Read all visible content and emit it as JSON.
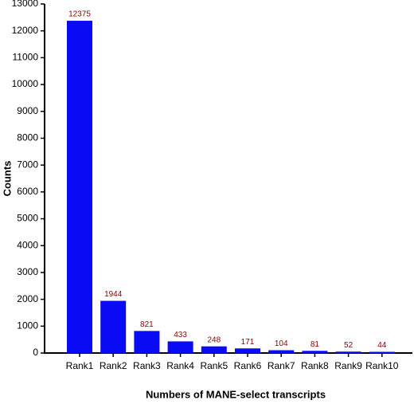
{
  "chart_data": {
    "type": "bar",
    "x_label": "Numbers of MANE-select transcripts",
    "y_label": "Counts",
    "categories": [
      "Rank1",
      "Rank2",
      "Rank3",
      "Rank4",
      "Rank5",
      "Rank6",
      "Rank7",
      "Rank8",
      "Rank9",
      "Rank10"
    ],
    "values": [
      12375,
      1944,
      821,
      433,
      248,
      171,
      104,
      81,
      52,
      44
    ],
    "color": "#0a0af5",
    "label_color": "#8b0000",
    "ylim": [
      0,
      13000
    ],
    "yticks": [
      0,
      1000,
      2000,
      3000,
      4000,
      5000,
      6000,
      7000,
      8000,
      9000,
      10000,
      11000,
      12000,
      13000
    ],
    "grid": false
  }
}
